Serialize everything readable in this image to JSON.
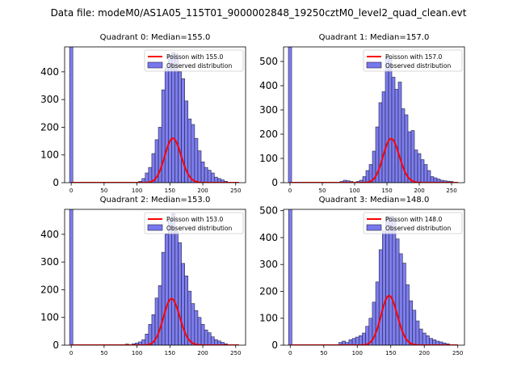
{
  "figure": {
    "suptitle": "Data file: modeM0/AS1A05_115T01_9000002848_19250cztM0_level2_quad_clean.evt"
  },
  "chart_data": [
    {
      "type": "bar",
      "title": "Quadrant 0: Median=155.0",
      "xlim": [
        -10,
        265
      ],
      "ylim": [
        0,
        490
      ],
      "xticks": [
        0,
        50,
        100,
        150,
        200,
        250
      ],
      "yticks": [
        0,
        100,
        200,
        300,
        400
      ],
      "bin_width": 5,
      "bins": [
        [
          -2.5,
          600
        ],
        [
          97.5,
          2
        ],
        [
          102.5,
          5
        ],
        [
          107.5,
          15
        ],
        [
          112.5,
          35
        ],
        [
          117.5,
          55
        ],
        [
          122.5,
          105
        ],
        [
          127.5,
          155
        ],
        [
          132.5,
          200
        ],
        [
          137.5,
          335
        ],
        [
          142.5,
          415
        ],
        [
          147.5,
          460
        ],
        [
          152.5,
          470
        ],
        [
          157.5,
          465
        ],
        [
          162.5,
          400
        ],
        [
          167.5,
          375
        ],
        [
          172.5,
          295
        ],
        [
          177.5,
          230
        ],
        [
          182.5,
          210
        ],
        [
          187.5,
          160
        ],
        [
          192.5,
          115
        ],
        [
          197.5,
          75
        ],
        [
          202.5,
          55
        ],
        [
          207.5,
          45
        ],
        [
          212.5,
          35
        ],
        [
          217.5,
          20
        ],
        [
          222.5,
          15
        ],
        [
          227.5,
          10
        ],
        [
          232.5,
          5
        ]
      ],
      "poisson_mean": 155.0,
      "poisson_total": 5000,
      "legend": {
        "line": "Poisson with 155.0",
        "bar": "Observed distribution"
      }
    },
    {
      "type": "bar",
      "title": "Quadrant 1: Median=157.0",
      "xlim": [
        -10,
        270
      ],
      "ylim": [
        0,
        560
      ],
      "xticks": [
        0,
        50,
        100,
        150,
        200,
        250
      ],
      "yticks": [
        0,
        100,
        200,
        300,
        400,
        500
      ],
      "bin_width": 5,
      "bins": [
        [
          -2.5,
          700
        ],
        [
          77.5,
          5
        ],
        [
          82.5,
          10
        ],
        [
          87.5,
          8
        ],
        [
          92.5,
          5
        ],
        [
          102.5,
          5
        ],
        [
          107.5,
          10
        ],
        [
          112.5,
          25
        ],
        [
          117.5,
          50
        ],
        [
          122.5,
          75
        ],
        [
          127.5,
          130
        ],
        [
          132.5,
          230
        ],
        [
          137.5,
          330
        ],
        [
          142.5,
          375
        ],
        [
          147.5,
          520
        ],
        [
          152.5,
          515
        ],
        [
          157.5,
          435
        ],
        [
          162.5,
          385
        ],
        [
          167.5,
          415
        ],
        [
          172.5,
          305
        ],
        [
          177.5,
          280
        ],
        [
          182.5,
          210
        ],
        [
          187.5,
          215
        ],
        [
          192.5,
          135
        ],
        [
          197.5,
          120
        ],
        [
          202.5,
          95
        ],
        [
          207.5,
          75
        ],
        [
          212.5,
          50
        ],
        [
          217.5,
          25
        ],
        [
          222.5,
          20
        ],
        [
          227.5,
          15
        ],
        [
          232.5,
          10
        ],
        [
          237.5,
          8
        ],
        [
          242.5,
          6
        ],
        [
          247.5,
          5
        ]
      ],
      "poisson_mean": 157.0,
      "poisson_total": 5700,
      "legend": {
        "line": "Poisson with 157.0",
        "bar": "Observed distribution"
      }
    },
    {
      "type": "bar",
      "title": "Quadrant 2: Median=153.0",
      "xlim": [
        -10,
        265
      ],
      "ylim": [
        0,
        490
      ],
      "xticks": [
        0,
        50,
        100,
        150,
        200,
        250
      ],
      "yticks": [
        0,
        100,
        200,
        300,
        400
      ],
      "bin_width": 5,
      "bins": [
        [
          -2.5,
          600
        ],
        [
          82.5,
          4
        ],
        [
          92.5,
          5
        ],
        [
          97.5,
          8
        ],
        [
          102.5,
          12
        ],
        [
          107.5,
          20
        ],
        [
          112.5,
          40
        ],
        [
          117.5,
          75
        ],
        [
          122.5,
          110
        ],
        [
          127.5,
          170
        ],
        [
          132.5,
          215
        ],
        [
          137.5,
          335
        ],
        [
          142.5,
          400
        ],
        [
          147.5,
          450
        ],
        [
          152.5,
          475
        ],
        [
          157.5,
          410
        ],
        [
          162.5,
          370
        ],
        [
          167.5,
          295
        ],
        [
          172.5,
          250
        ],
        [
          177.5,
          195
        ],
        [
          182.5,
          150
        ],
        [
          187.5,
          125
        ],
        [
          192.5,
          100
        ],
        [
          197.5,
          75
        ],
        [
          202.5,
          55
        ],
        [
          207.5,
          45
        ],
        [
          212.5,
          30
        ],
        [
          217.5,
          20
        ],
        [
          222.5,
          15
        ],
        [
          227.5,
          10
        ],
        [
          232.5,
          5
        ]
      ],
      "poisson_mean": 153.0,
      "poisson_total": 5200,
      "legend": {
        "line": "Poisson with 153.0",
        "bar": "Observed distribution"
      }
    },
    {
      "type": "bar",
      "title": "Quadrant 3: Median=148.0",
      "xlim": [
        -10,
        260
      ],
      "ylim": [
        0,
        505
      ],
      "xticks": [
        0,
        50,
        100,
        150,
        200,
        250
      ],
      "yticks": [
        0,
        100,
        200,
        300,
        400,
        500
      ],
      "bin_width": 5,
      "bins": [
        [
          -2.5,
          600
        ],
        [
          72.5,
          10
        ],
        [
          77.5,
          15
        ],
        [
          82.5,
          10
        ],
        [
          87.5,
          20
        ],
        [
          92.5,
          25
        ],
        [
          97.5,
          30
        ],
        [
          102.5,
          35
        ],
        [
          107.5,
          45
        ],
        [
          112.5,
          70
        ],
        [
          117.5,
          100
        ],
        [
          122.5,
          160
        ],
        [
          127.5,
          235
        ],
        [
          132.5,
          355
        ],
        [
          137.5,
          425
        ],
        [
          142.5,
          475
        ],
        [
          147.5,
          480
        ],
        [
          152.5,
          465
        ],
        [
          157.5,
          395
        ],
        [
          162.5,
          340
        ],
        [
          167.5,
          305
        ],
        [
          172.5,
          225
        ],
        [
          177.5,
          165
        ],
        [
          182.5,
          130
        ],
        [
          187.5,
          90
        ],
        [
          192.5,
          60
        ],
        [
          197.5,
          45
        ],
        [
          202.5,
          35
        ],
        [
          207.5,
          25
        ],
        [
          212.5,
          20
        ],
        [
          217.5,
          15
        ],
        [
          222.5,
          12
        ],
        [
          227.5,
          8
        ],
        [
          232.5,
          5
        ]
      ],
      "poisson_mean": 148.0,
      "poisson_total": 5600,
      "legend": {
        "line": "Poisson with 148.0",
        "bar": "Observed distribution"
      }
    }
  ],
  "colors": {
    "bar_fill": "#7777ee",
    "bar_edge": "#222244",
    "poisson_line": "#ff0000",
    "axes": "#000000"
  }
}
